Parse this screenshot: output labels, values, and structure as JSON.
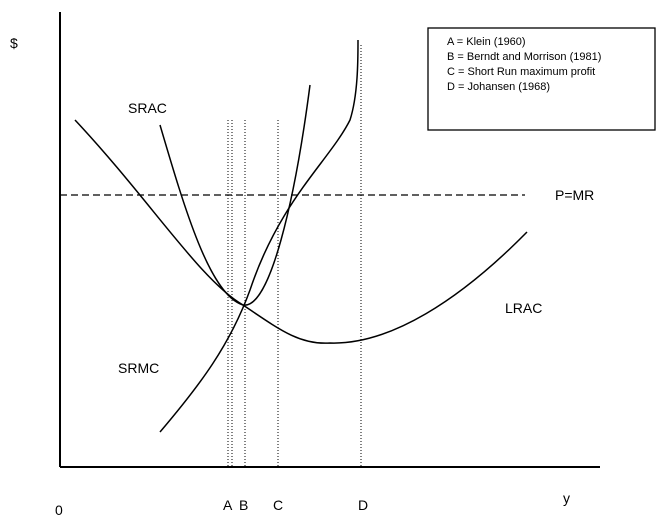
{
  "axes": {
    "y_label": "$",
    "origin": "0",
    "x_label": "y"
  },
  "curves": {
    "srac": "SRAC",
    "srmc": "SRMC",
    "lrac": "LRAC",
    "price": "P=MR"
  },
  "markers": [
    "A",
    "B",
    "C",
    "D"
  ],
  "legend": [
    "A = Klein (1960)",
    "B = Berndt and Morrison (1981)",
    "C = Short Run maximum profit",
    "D = Johansen (1968)"
  ]
}
